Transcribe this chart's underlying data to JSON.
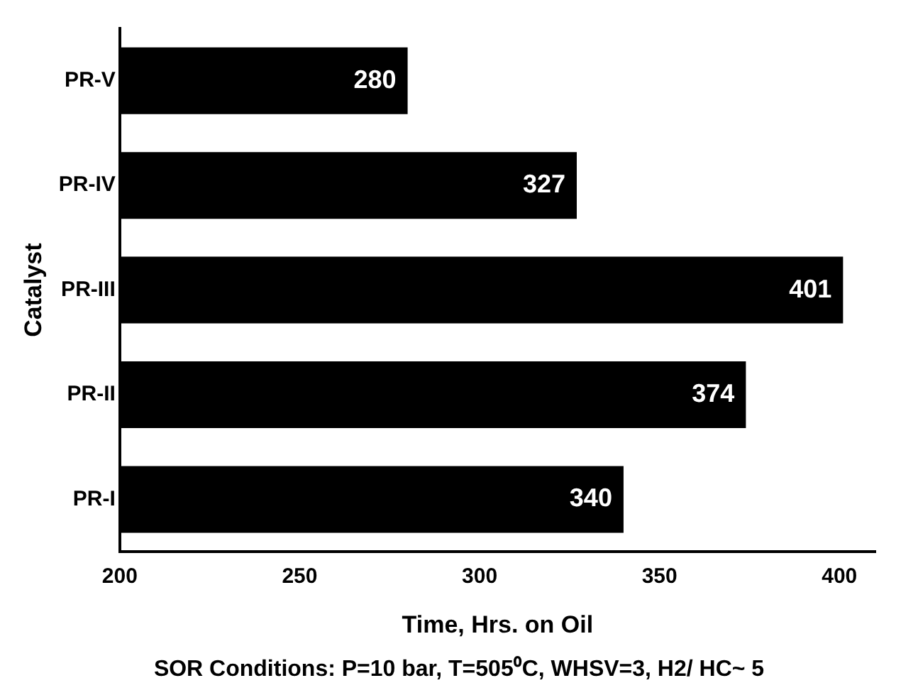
{
  "chart_data": {
    "type": "bar",
    "orientation": "horizontal",
    "categories": [
      "PR-V",
      "PR-IV",
      "PR-III",
      "PR-II",
      "PR-I"
    ],
    "values": [
      280,
      327,
      401,
      374,
      340
    ],
    "color": "#000000",
    "data_labels": true,
    "xlim": [
      200,
      410
    ],
    "xticks": [
      200,
      250,
      300,
      350,
      400
    ],
    "xlabel": "Time, Hrs. on Oil",
    "ylabel": "Catalyst",
    "grid": false,
    "legend": false,
    "annotations": [
      "SOR Conditions: P=10 bar, T=505⁰C, WHSV=3, H2/ HC~ 5"
    ]
  }
}
